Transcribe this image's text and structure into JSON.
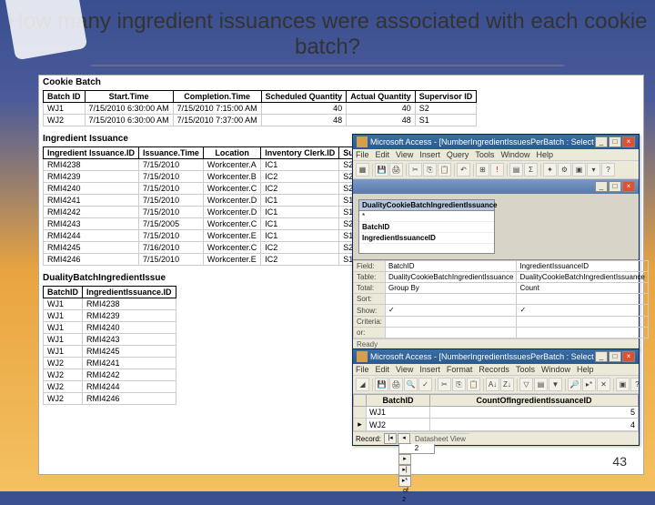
{
  "slide": {
    "title": "How many ingredient issuances were associated with each cookie batch?",
    "page_number": "43"
  },
  "cookie_batch": {
    "label": "Cookie Batch",
    "columns": [
      "Batch ID",
      "Start.Time",
      "Completion.Time",
      "Scheduled Quantity",
      "Actual Quantity",
      "Supervisor ID"
    ],
    "rows": [
      [
        "WJ1",
        "7/15/2010 6:30:00 AM",
        "7/15/2010 7:15:00 AM",
        "40",
        "40",
        "S2"
      ],
      [
        "WJ2",
        "7/15/2010 6:30:00 AM",
        "7/15/2010 7:37:00 AM",
        "48",
        "48",
        "S1"
      ]
    ]
  },
  "ingredient_issuance": {
    "label": "Ingredient Issuance",
    "columns": [
      "Ingredient Issuance.ID",
      "Issuance.Time",
      "Location",
      "Inventory Clerk.ID",
      "Supervisor.ID"
    ],
    "rows": [
      [
        "RMI4238",
        "7/15/2010",
        "Workcenter.A",
        "IC1",
        "S2"
      ],
      [
        "RMI4239",
        "7/15/2010",
        "Workcenter.B",
        "IC2",
        "S2"
      ],
      [
        "RMI4240",
        "7/15/2010",
        "Workcenter.C",
        "IC2",
        "S2"
      ],
      [
        "RMI4241",
        "7/15/2010",
        "Workcenter.D",
        "IC1",
        "S1"
      ],
      [
        "RMI4242",
        "7/15/2010",
        "Workcenter.D",
        "IC1",
        "S1"
      ],
      [
        "RMI4243",
        "7/15/2005",
        "Workcenter.C",
        "IC1",
        "S2"
      ],
      [
        "RMI4244",
        "7/15/2010",
        "Workcenter.E",
        "IC1",
        "S1"
      ],
      [
        "RMI4245",
        "7/16/2010",
        "Workcenter.C",
        "IC2",
        "S2"
      ],
      [
        "RMI4246",
        "7/15/2010",
        "Workcenter.E",
        "IC2",
        "S1"
      ]
    ]
  },
  "duality": {
    "label": "DualityBatchIngredientIssue",
    "columns": [
      "BatchID",
      "IngredientIssuance.ID"
    ],
    "rows": [
      [
        "WJ1",
        "RMI4238"
      ],
      [
        "WJ1",
        "RMI4239"
      ],
      [
        "WJ1",
        "RMI4240"
      ],
      [
        "WJ1",
        "RMI4243"
      ],
      [
        "WJ1",
        "RMI4245"
      ],
      [
        "WJ2",
        "RMI4241"
      ],
      [
        "WJ2",
        "RMI4242"
      ],
      [
        "WJ2",
        "RMI4244"
      ],
      [
        "WJ2",
        "RMI4246"
      ]
    ]
  },
  "design_window": {
    "title": "Microsoft Access - [NumberIngredientIssuesPerBatch : Select Query]",
    "menus": [
      "File",
      "Edit",
      "View",
      "Insert",
      "Query",
      "Tools",
      "Window",
      "Help"
    ],
    "table_box": {
      "header": "DualityCookieBatchIngredientIssuance",
      "fields": [
        "*",
        "BatchID",
        "IngredientIssuanceID"
      ]
    },
    "grid_labels": [
      "Field:",
      "Table:",
      "Total:",
      "Sort:",
      "Show:",
      "Criteria:",
      "or:"
    ],
    "col1": {
      "field": "BatchID",
      "table": "DualityCookieBatchIngredientIssuance",
      "total": "Group By",
      "show": "✓"
    },
    "col2": {
      "field": "IngredientIssuanceID",
      "table": "DualityCookieBatchIngredientIssuance",
      "total": "Count",
      "show": "✓"
    },
    "status": "Ready"
  },
  "result_window": {
    "title": "Microsoft Access - [NumberIngredientIssuesPerBatch : Select Query]",
    "menus": [
      "File",
      "Edit",
      "View",
      "Insert",
      "Format",
      "Records",
      "Tools",
      "Window",
      "Help"
    ],
    "columns": [
      "BatchID",
      "CountOfIngredientIssuanceID"
    ],
    "rows": [
      [
        "WJ1",
        "5"
      ],
      [
        "WJ2",
        "4"
      ]
    ],
    "record_label": "Record:",
    "record_pos": "2",
    "record_total": "of  2",
    "status": "Datasheet View"
  }
}
